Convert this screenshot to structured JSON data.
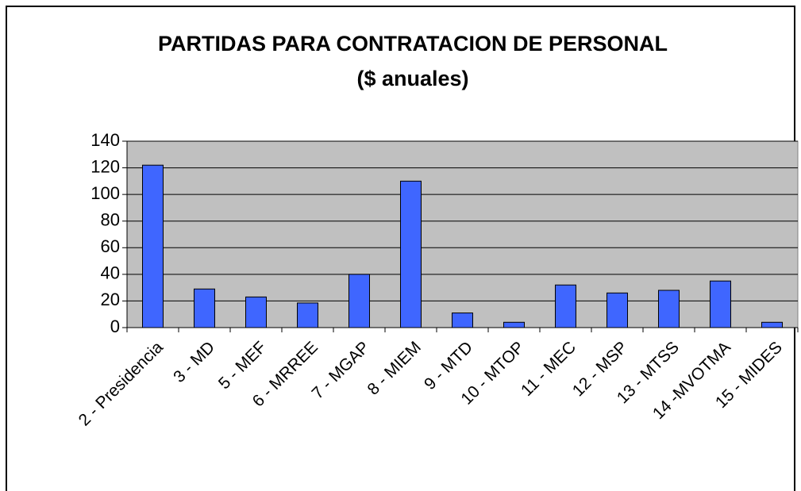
{
  "chart_data": {
    "type": "bar",
    "title": "PARTIDAS PARA CONTRATACION DE PERSONAL",
    "subtitle": "($ anuales)",
    "categories": [
      "2 - Presidencia",
      "3 - MD",
      "5 - MEF",
      "6 - MRREE",
      "7 - MGAP",
      "8 - MIEM",
      "9 - MTD",
      "10 - MTOP",
      "11 - MEC",
      "12 - MSP",
      "13 - MTSS",
      "14 -MVOTMA",
      "15 - MIDES"
    ],
    "values": [
      122,
      29,
      23,
      18.5,
      40,
      110,
      11,
      4,
      32,
      26,
      28,
      35,
      4
    ],
    "color": "#3f66ff",
    "ylim": [
      0,
      140
    ],
    "yticks": [
      0,
      20,
      40,
      60,
      80,
      100,
      120,
      140
    ],
    "grid": true
  }
}
